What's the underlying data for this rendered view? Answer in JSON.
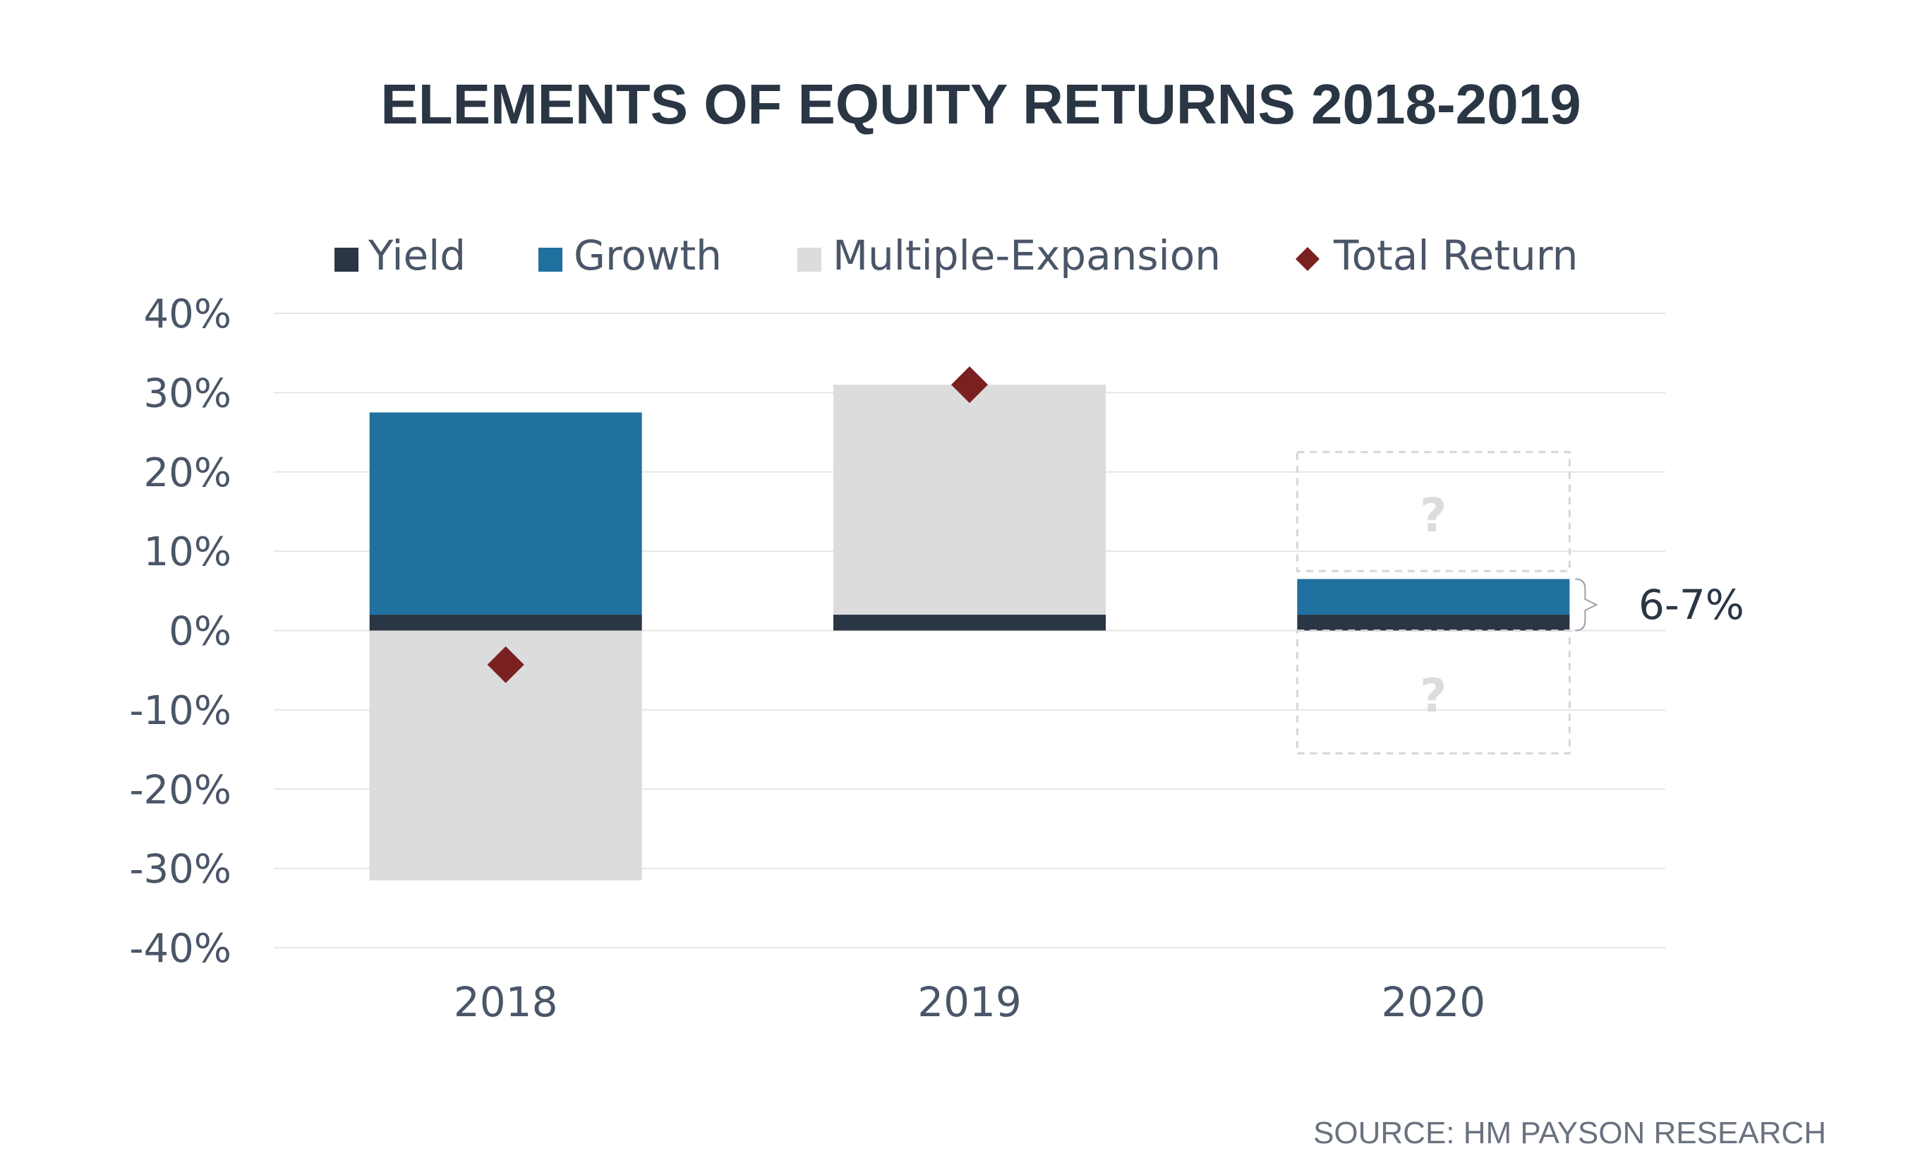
{
  "chart_data": {
    "type": "bar",
    "stacked": true,
    "title": "ELEMENTS OF EQUITY RETURNS 2018-2019",
    "categories": [
      "2018",
      "2019",
      "2020"
    ],
    "ylim": [
      -40,
      40
    ],
    "yticks": [
      "40%",
      "30%",
      "20%",
      "10%",
      "0%",
      "-10%",
      "-20%",
      "-30%",
      "-40%"
    ],
    "ytick_values": [
      40,
      30,
      20,
      10,
      0,
      -10,
      -20,
      -30,
      -40
    ],
    "grid": true,
    "legend_position": "top",
    "series": [
      {
        "name": "Yield",
        "color": "#2b3644",
        "values": [
          2,
          2,
          2
        ]
      },
      {
        "name": "Growth",
        "color": "#20709f",
        "values": [
          25.5,
          0,
          4.5
        ]
      },
      {
        "name": "Multiple-Expansion",
        "color": "#dcdcdc",
        "values": [
          -31.5,
          29,
          null
        ]
      }
    ],
    "total_return": {
      "name": "Total Return",
      "color": "#7a2020",
      "values": [
        -4.3,
        31,
        null
      ]
    },
    "uncertain_2020": {
      "upper": [
        7.5,
        22.5
      ],
      "lower": [
        0,
        -15.5
      ],
      "marker": "?"
    },
    "annotation": "6-7%",
    "source": "SOURCE: HM PAYSON RESEARCH"
  }
}
